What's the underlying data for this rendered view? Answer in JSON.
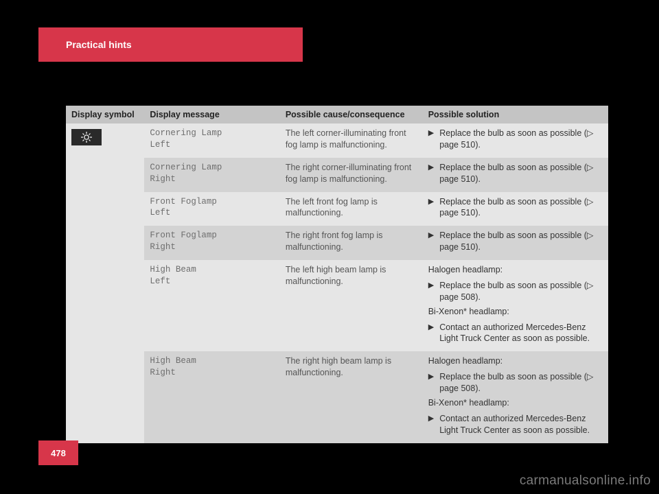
{
  "header": {
    "title": "Practical hints"
  },
  "page_number": "478",
  "watermark": "carmanualsonline.info",
  "table": {
    "columns": [
      "Display symbol",
      "Display message",
      "Possible cause/consequence",
      "Possible solution"
    ],
    "symbol": "light-bulb-icon",
    "rows": [
      {
        "msg_l1": "Cornering Lamp",
        "msg_l2": "Left",
        "cause": "The left corner-illuminating front fog lamp is malfunctioning.",
        "solution": [
          {
            "type": "bullet",
            "text": "Replace the bulb as soon as possible (▷ page 510)."
          }
        ]
      },
      {
        "msg_l1": "Cornering Lamp",
        "msg_l2": "Right",
        "cause": "The right corner-illuminating front fog lamp is malfunctioning.",
        "solution": [
          {
            "type": "bullet",
            "text": "Replace the bulb as soon as possible (▷ page 510)."
          }
        ]
      },
      {
        "msg_l1": "Front Foglamp",
        "msg_l2": "Left",
        "cause": "The left front fog lamp is malfunctioning.",
        "solution": [
          {
            "type": "bullet",
            "text": "Replace the bulb as soon as possible (▷ page 510)."
          }
        ]
      },
      {
        "msg_l1": "Front Foglamp",
        "msg_l2": "Right",
        "cause": "The right front fog lamp is malfunctioning.",
        "solution": [
          {
            "type": "bullet",
            "text": "Replace the bulb as soon as possible (▷ page 510)."
          }
        ]
      },
      {
        "msg_l1": "High Beam",
        "msg_l2": "Left",
        "cause": "The left high beam lamp is malfunctioning.",
        "solution": [
          {
            "type": "plain",
            "text": "Halogen headlamp:"
          },
          {
            "type": "bullet",
            "text": "Replace the bulb as soon as possible (▷ page 508)."
          },
          {
            "type": "plain",
            "text": "Bi-Xenon* headlamp:"
          },
          {
            "type": "bullet",
            "text": "Contact an authorized Mercedes-Benz Light Truck Center as soon as possible."
          }
        ]
      },
      {
        "msg_l1": "High Beam",
        "msg_l2": "Right",
        "cause": "The right high beam lamp is malfunctioning.",
        "solution": [
          {
            "type": "plain",
            "text": "Halogen headlamp:"
          },
          {
            "type": "bullet",
            "text": "Replace the bulb as soon as possible (▷ page 508)."
          },
          {
            "type": "plain",
            "text": "Bi-Xenon* headlamp:"
          },
          {
            "type": "bullet",
            "text": "Contact an authorized Mercedes-Benz Light Truck Center as soon as possible."
          }
        ]
      }
    ]
  }
}
